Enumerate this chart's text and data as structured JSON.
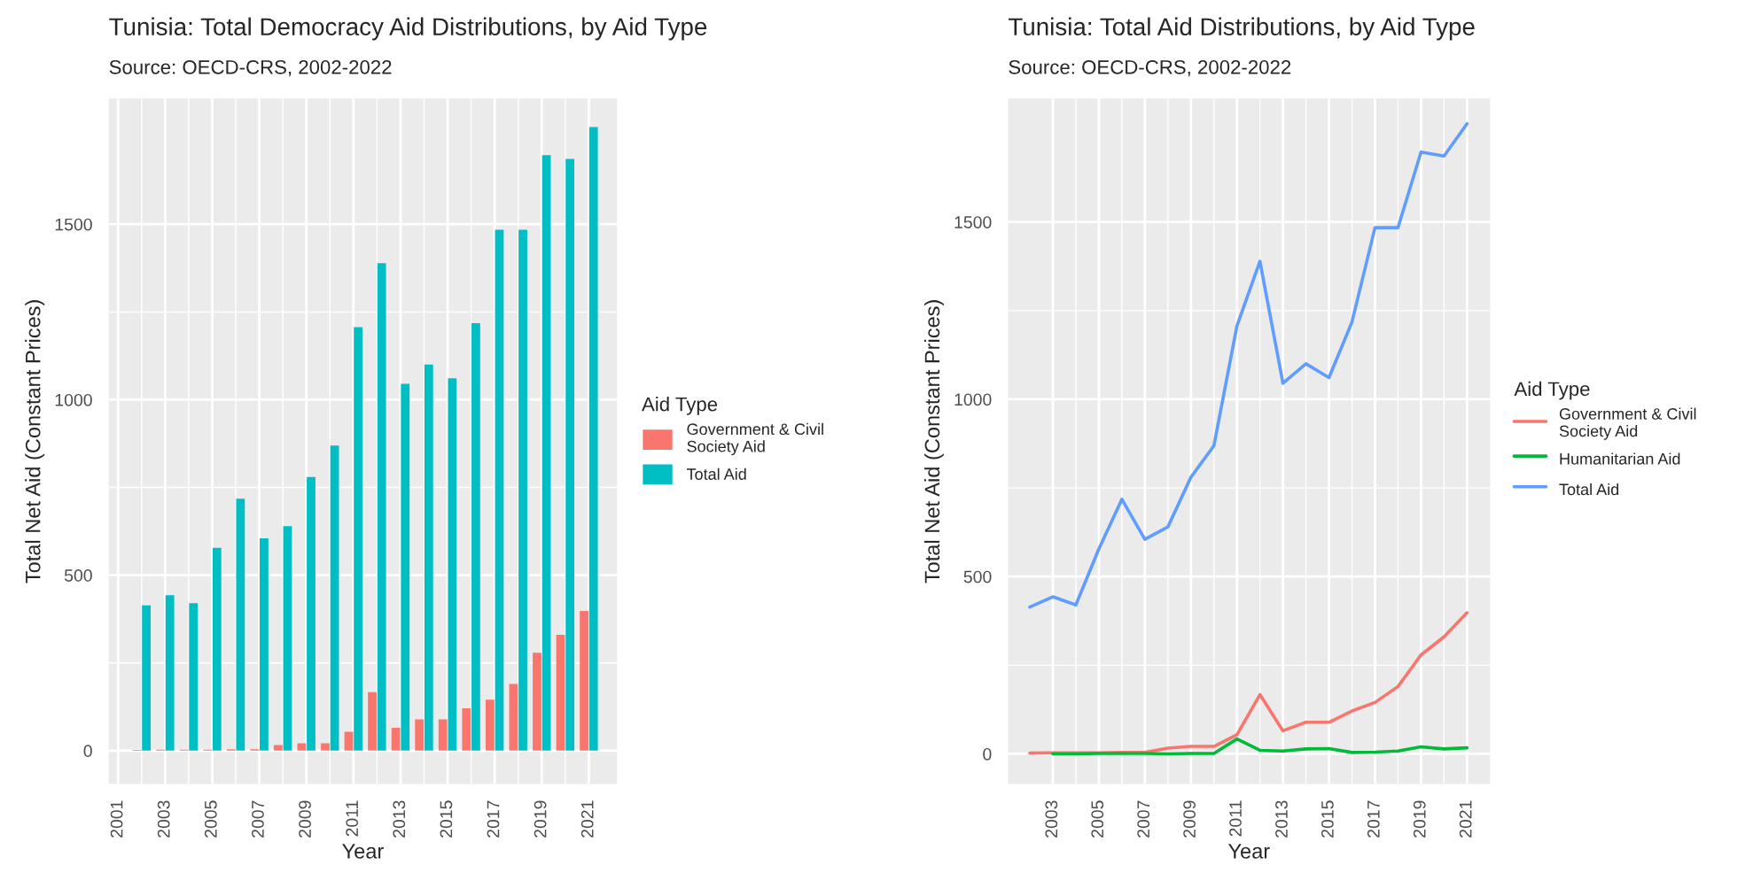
{
  "chart_data": [
    {
      "type": "bar",
      "title": "Tunisia: Total Democracy Aid Distributions, by Aid Type",
      "subtitle": "Source: OECD-CRS, 2002-2022",
      "xlabel": "Year",
      "ylabel": "Total Net Aid (Constant Prices)",
      "legend_title": "Aid Type",
      "x": [
        2002,
        2003,
        2004,
        2005,
        2006,
        2007,
        2008,
        2009,
        2010,
        2011,
        2012,
        2013,
        2014,
        2015,
        2016,
        2017,
        2018,
        2019,
        2020,
        2021
      ],
      "series": [
        {
          "name": "Government & Civil Society Aid",
          "color": "#f8766d",
          "values": [
            2,
            3,
            3,
            3,
            4,
            4,
            16,
            21,
            21,
            54,
            167,
            65,
            89,
            89,
            121,
            145,
            190,
            279,
            330,
            398
          ]
        },
        {
          "name": "Total Aid",
          "color": "#00bfc4",
          "values": [
            414,
            443,
            420,
            578,
            718,
            605,
            640,
            780,
            869,
            1207,
            1389,
            1045,
            1100,
            1061,
            1218,
            1484,
            1484,
            1697,
            1686,
            1777
          ]
        }
      ],
      "xlim": [
        2000.6,
        2022.2
      ],
      "xticks": [
        2001,
        2003,
        2005,
        2007,
        2009,
        2011,
        2013,
        2015,
        2017,
        2019,
        2021
      ],
      "ylim": [
        -95,
        1858
      ],
      "yticks": [
        0,
        500,
        1000,
        1500
      ],
      "grid": true,
      "legend": "right"
    },
    {
      "type": "line",
      "title": "Tunisia: Total Aid Distributions, by Aid Type",
      "subtitle": "Source: OECD-CRS, 2002-2022",
      "xlabel": "Year",
      "ylabel": "Total Net Aid (Constant Prices)",
      "legend_title": "Aid Type",
      "series": [
        {
          "name": "Government & Civil Society Aid",
          "color": "#f8766d",
          "x": [
            2002,
            2003,
            2004,
            2005,
            2006,
            2007,
            2008,
            2009,
            2010,
            2011,
            2012,
            2013,
            2014,
            2015,
            2016,
            2017,
            2018,
            2019,
            2020,
            2021
          ],
          "values": [
            2,
            3,
            3,
            3,
            4,
            4,
            16,
            21,
            21,
            54,
            167,
            65,
            89,
            89,
            121,
            145,
            190,
            279,
            330,
            398
          ]
        },
        {
          "name": "Humanitarian Aid",
          "color": "#00ba38",
          "x": [
            2003,
            2004,
            2005,
            2006,
            2007,
            2008,
            2009,
            2010,
            2011,
            2012,
            2013,
            2014,
            2015,
            2016,
            2017,
            2018,
            2019,
            2020,
            2021
          ],
          "values": [
            0,
            0,
            1,
            1,
            1,
            0,
            1,
            1,
            42,
            10,
            8,
            14,
            15,
            4,
            5,
            8,
            20,
            14,
            17
          ]
        },
        {
          "name": "Total Aid",
          "color": "#619cff",
          "x": [
            2002,
            2003,
            2004,
            2005,
            2006,
            2007,
            2008,
            2009,
            2010,
            2011,
            2012,
            2013,
            2014,
            2015,
            2016,
            2017,
            2018,
            2019,
            2020,
            2021
          ],
          "values": [
            414,
            443,
            420,
            578,
            718,
            605,
            640,
            780,
            869,
            1207,
            1389,
            1045,
            1100,
            1061,
            1218,
            1484,
            1484,
            1697,
            1686,
            1777
          ]
        }
      ],
      "xlim": [
        2001.05,
        2022.0
      ],
      "xticks": [
        2003,
        2005,
        2007,
        2009,
        2011,
        2013,
        2015,
        2017,
        2019,
        2021
      ],
      "ylim": [
        -85,
        1848
      ],
      "yticks": [
        0,
        500,
        1000,
        1500
      ],
      "grid": true,
      "legend": "right",
      "line_style": "solid",
      "marker": "none"
    }
  ]
}
